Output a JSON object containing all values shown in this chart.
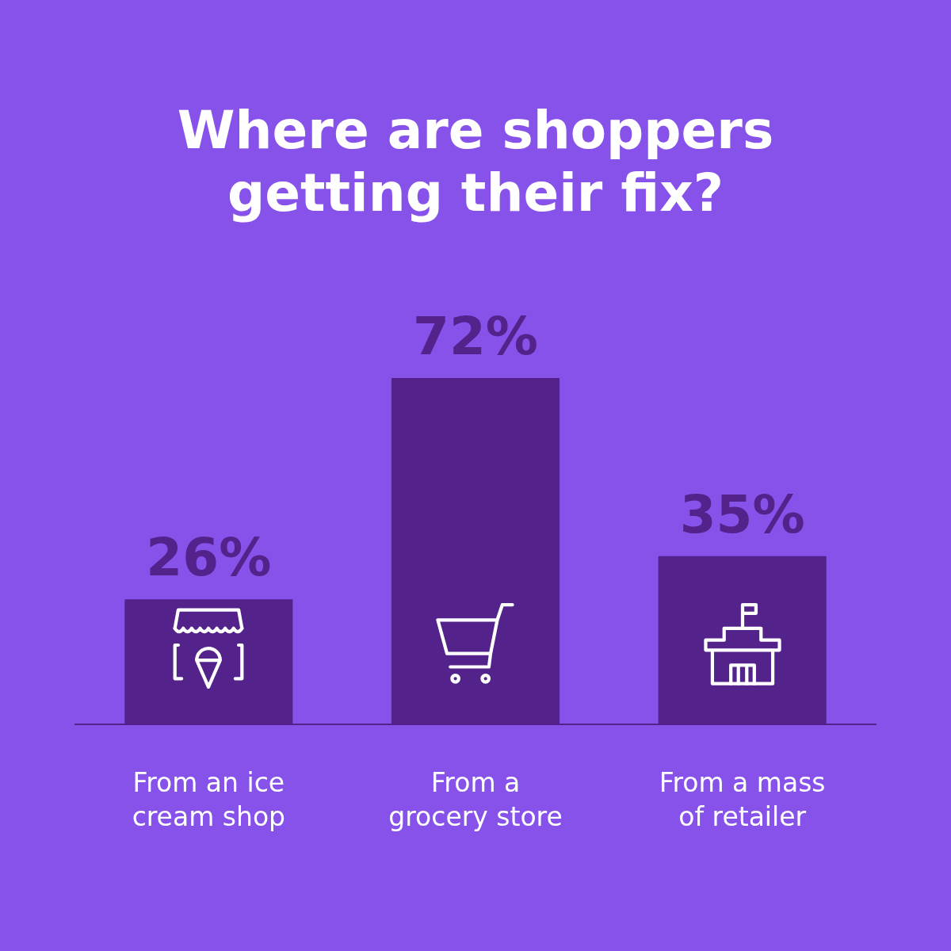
{
  "chart_data": {
    "type": "bar",
    "title": "Where are shoppers getting their fix?",
    "categories": [
      "From an ice cream shop",
      "From a grocery store",
      "From a mass of retailer"
    ],
    "values": [
      26,
      72,
      35
    ],
    "value_labels": [
      "26%",
      "72%",
      "35%"
    ],
    "color": "#53228a",
    "grid": false,
    "legend": false
  }
}
